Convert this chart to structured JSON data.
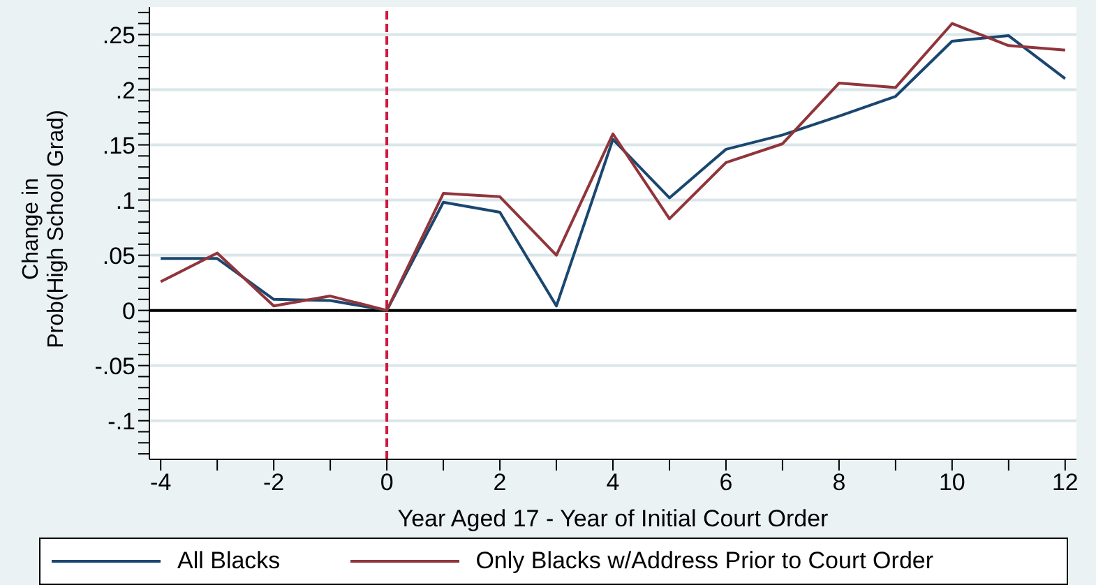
{
  "chart_data": {
    "type": "line",
    "xlabel": "Year Aged 17 - Year of Initial Court Order",
    "ylabel": "Change in\nProb(High School Grad)",
    "x": [
      -4,
      -3,
      -2,
      -1,
      0,
      1,
      2,
      3,
      4,
      5,
      6,
      7,
      8,
      9,
      10,
      11,
      12
    ],
    "series": [
      {
        "name": "All Blacks",
        "color": "#1a476f",
        "values": [
          0.047,
          0.047,
          0.01,
          0.009,
          0,
          0.098,
          0.089,
          0.004,
          0.155,
          0.102,
          0.146,
          0.159,
          0.176,
          0.194,
          0.244,
          0.249,
          0.21
        ]
      },
      {
        "name": "Only Blacks w/Address Prior to Court Order",
        "color": "#90353b",
        "values": [
          0.026,
          0.052,
          0.004,
          0.013,
          0,
          0.106,
          0.103,
          0.05,
          0.16,
          0.083,
          0.134,
          0.151,
          0.206,
          0.202,
          0.26,
          0.24,
          0.236
        ]
      }
    ],
    "xlim": [
      -4.2,
      12.2
    ],
    "xticks": [
      -4,
      {
        "value": -3,
        "label": null
      },
      -2,
      {
        "value": -1,
        "label": null
      },
      0,
      {
        "value": 1,
        "label": null
      },
      2,
      {
        "value": 3,
        "label": null
      },
      4,
      {
        "value": 5,
        "label": null
      },
      6,
      {
        "value": 7,
        "label": null
      },
      8,
      {
        "value": 9,
        "label": null
      },
      10,
      {
        "value": 11,
        "label": null
      },
      12
    ],
    "ylim": [
      -0.135,
      0.275
    ],
    "yticks": [
      {
        "value": -0.13,
        "label": null
      },
      {
        "value": -0.12,
        "label": null
      },
      {
        "value": -0.11,
        "label": null
      },
      {
        "value": -0.1,
        "label": "-.1"
      },
      {
        "value": -0.09,
        "label": null
      },
      {
        "value": -0.08,
        "label": null
      },
      {
        "value": -0.07,
        "label": null
      },
      {
        "value": -0.06,
        "label": null
      },
      {
        "value": -0.05,
        "label": "-.05"
      },
      {
        "value": -0.04,
        "label": null
      },
      {
        "value": -0.03,
        "label": null
      },
      {
        "value": -0.02,
        "label": null
      },
      {
        "value": -0.01,
        "label": null
      },
      0,
      {
        "value": 0.01,
        "label": null
      },
      {
        "value": 0.02,
        "label": null
      },
      {
        "value": 0.03,
        "label": null
      },
      {
        "value": 0.04,
        "label": null
      },
      {
        "value": 0.05,
        "label": ".05"
      },
      {
        "value": 0.06,
        "label": null
      },
      {
        "value": 0.07,
        "label": null
      },
      {
        "value": 0.08,
        "label": null
      },
      {
        "value": 0.09,
        "label": null
      },
      {
        "value": 0.1,
        "label": ".1"
      },
      {
        "value": 0.11,
        "label": null
      },
      {
        "value": 0.12,
        "label": null
      },
      {
        "value": 0.13,
        "label": null
      },
      {
        "value": 0.14,
        "label": null
      },
      {
        "value": 0.15,
        "label": ".15"
      },
      {
        "value": 0.16,
        "label": null
      },
      {
        "value": 0.17,
        "label": null
      },
      {
        "value": 0.18,
        "label": null
      },
      {
        "value": 0.19,
        "label": null
      },
      {
        "value": 0.2,
        "label": ".2"
      },
      {
        "value": 0.21,
        "label": null
      },
      {
        "value": 0.22,
        "label": null
      },
      {
        "value": 0.23,
        "label": null
      },
      {
        "value": 0.24,
        "label": null
      },
      {
        "value": 0.25,
        "label": ".25"
      },
      {
        "value": 0.26,
        "label": null
      },
      {
        "value": 0.27,
        "label": null
      }
    ],
    "ref_lines": [
      {
        "axis": "y",
        "value": 0,
        "color": "#000000",
        "line_style": "solid"
      },
      {
        "axis": "x",
        "value": 0,
        "color": "#d0193f",
        "line_style": "dashed"
      }
    ],
    "grid": "y",
    "legend": "bottom",
    "marker": "none",
    "line_style": "solid"
  }
}
